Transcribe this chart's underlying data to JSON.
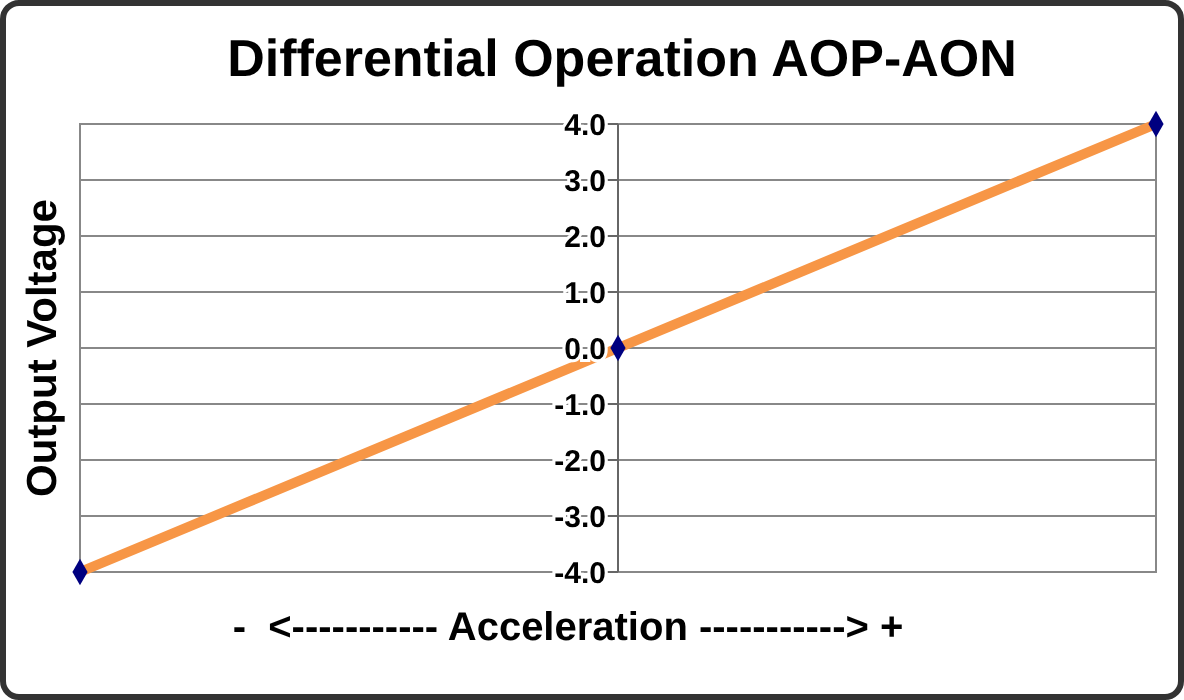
{
  "chart_data": {
    "type": "line",
    "title": "Differential Operation AOP-AON",
    "xlabel": "-  <----------- Acceleration -----------> +",
    "ylabel": "Output Voltage",
    "categories": [
      null,
      null,
      null
    ],
    "series": [
      {
        "color": "#f79646",
        "values": [
          -4,
          0,
          4
        ]
      },
      {
        "type": "scatter",
        "color": "#000080",
        "values": [
          -4,
          0,
          4
        ],
        "marker": "diamond"
      }
    ],
    "ylim": [
      -4,
      4
    ],
    "yticks": [
      {
        "value": -4,
        "label": "-4.0"
      },
      {
        "value": -3,
        "label": "-3.0"
      },
      {
        "value": -2,
        "label": "-2.0"
      },
      {
        "value": -1,
        "label": "-1.0"
      },
      {
        "value": 0,
        "label": "0.0"
      },
      {
        "value": 1,
        "label": "1.0"
      },
      {
        "value": 2,
        "label": "2.0"
      },
      {
        "value": 3,
        "label": "3.0"
      },
      {
        "value": 4,
        "label": "4.0"
      }
    ],
    "grid": "y"
  }
}
